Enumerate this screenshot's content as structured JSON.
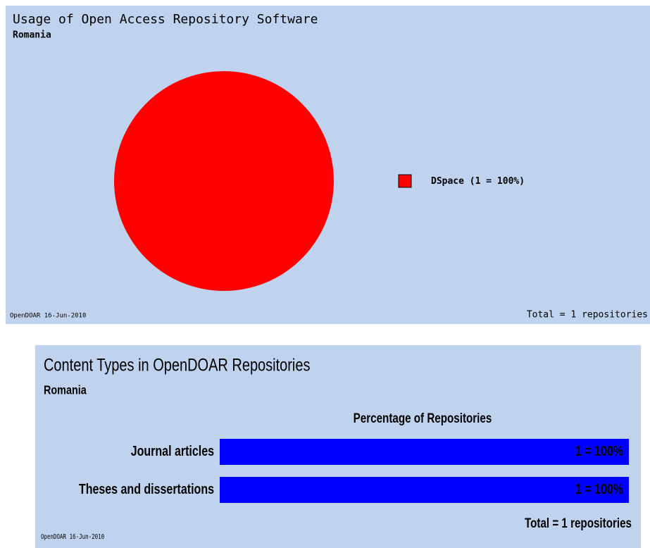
{
  "chart_data": [
    {
      "type": "pie",
      "title": "Usage of Open Access Repository Software",
      "subtitle": "Romania",
      "categories": [
        "DSpace"
      ],
      "values": [
        1
      ],
      "value_labels": [
        "(1 = 100%)"
      ],
      "colors": [
        "#ff0000"
      ],
      "footer_left": "OpenDOAR 16-Jun-2010",
      "footer_right": "Total = 1 repositories"
    },
    {
      "type": "hbar",
      "title": "Content Types in OpenDOAR Repositories",
      "subtitle": "Romania",
      "xlabel": "Percentage of Repositories",
      "categories": [
        "Journal articles",
        "Theses and dissertations"
      ],
      "values": [
        100,
        100
      ],
      "value_labels": [
        "1 = 100%",
        "1 = 100%"
      ],
      "color": "#0000ff",
      "xlim": [
        0,
        100
      ],
      "footer_left": "OpenDOAR 16-Jun-2010",
      "footer_right": "Total = 1 repositories"
    }
  ]
}
